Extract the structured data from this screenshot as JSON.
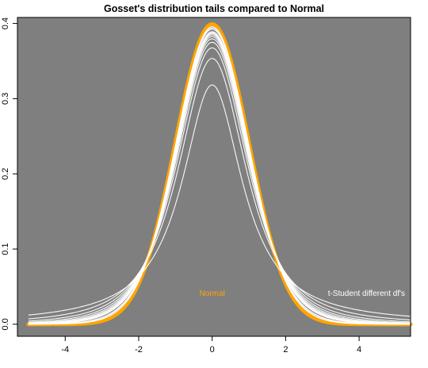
{
  "chart_data": {
    "type": "line",
    "title": "Gosset's distribution tails compared to Normal",
    "xlabel": "",
    "ylabel": "",
    "xlim": [
      -5.3,
      5.4
    ],
    "ylim": [
      -0.016,
      0.408
    ],
    "x_ticks": [
      -4,
      -2,
      0,
      2,
      4
    ],
    "x_tick_labels": [
      "-4",
      "-2",
      "0",
      "2",
      "4"
    ],
    "y_ticks": [
      0.0,
      0.1,
      0.2,
      0.3,
      0.4
    ],
    "y_tick_labels": [
      "0.0",
      "0.1",
      "0.2",
      "0.3",
      "0.4"
    ],
    "x_range": [
      -5,
      5.4
    ],
    "grid": false,
    "background": "#7f7f7f",
    "page_background": "#ffffff",
    "series": [
      {
        "name": "Normal",
        "distribution": "normal",
        "mean": 0,
        "sd": 1,
        "color": "#ffa500"
      },
      {
        "name": "t-Student different df's",
        "distribution": "t",
        "df": [
          1,
          2,
          3,
          4,
          5,
          6,
          7,
          8,
          9,
          10,
          15,
          20,
          30
        ],
        "color": "#ffffff"
      }
    ],
    "annotations": [
      {
        "text": "Normal",
        "x": 0,
        "y": 0.038,
        "color": "#ffa500"
      },
      {
        "text": "t-Student different df's",
        "x": 4.2,
        "y": 0.038,
        "color": "#ffffff"
      }
    ]
  }
}
